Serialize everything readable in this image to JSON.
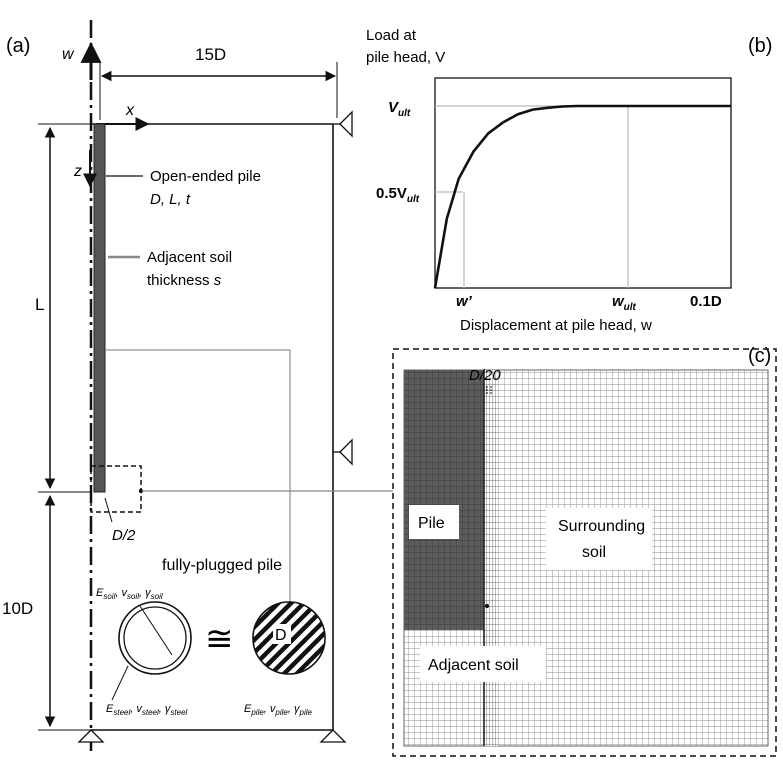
{
  "panel_a": {
    "label": "(a)",
    "axis_w": "w",
    "axis_x": "x",
    "axis_z": "z",
    "dim_15D": "15D",
    "dim_L": "L",
    "dim_10D": "10D",
    "pile_label": "Open-ended pile",
    "pile_params": "D, L, t",
    "adj_soil_line1": "Adjacent soil",
    "adj_soil_line2_prefix": "thickness ",
    "adj_soil_line2_var": "s",
    "d_half": "D/2",
    "fully_plugged": "fully-plugged pile",
    "equiv_symbol": "≅",
    "circle_D": "D",
    "soil_props": "Eₛₒᵢₗ, vₛₒᵢₗ, γₛₒᵢₗ",
    "soil_props_parts": [
      "E",
      "soil",
      ", v",
      "soil",
      ", γ",
      "soil"
    ],
    "steel_props_parts": [
      "E",
      "steel",
      ", v",
      "steel",
      ", γ",
      "steel"
    ],
    "pile_props_parts": [
      "E",
      "pile",
      ", v",
      "pile",
      ", γ",
      "pile"
    ]
  },
  "panel_b": {
    "label": "(b)",
    "ylabel_line1": "Load at",
    "ylabel_line2": "pile head, V",
    "xlabel": "Displacement at pile head, w",
    "ytick_vult_main": "V",
    "ytick_vult_sub": "ult",
    "ytick_half_main": "0.5V",
    "ytick_half_sub": "ult",
    "xtick_wprime": "w’",
    "xtick_wult_main": "w",
    "xtick_wult_sub": "ult",
    "xtick_end": "0.1D"
  },
  "panel_c": {
    "label": "(c)",
    "d20": "D/20",
    "pile": "Pile",
    "surrounding_line1": "Surrounding",
    "surrounding_line2": "soil",
    "adjacent": "Adjacent soil"
  },
  "chart_data": {
    "type": "line",
    "title": "",
    "xlabel": "Displacement at pile head, w",
    "ylabel": "Load at pile head, V",
    "xticks": [
      "w’",
      "w_ult",
      "0.1D"
    ],
    "yticks": [
      "0.5V_ult",
      "V_ult"
    ],
    "series": [
      {
        "x": [
          0.0,
          0.04,
          0.08,
          0.13,
          0.18,
          0.23,
          0.28,
          0.33,
          0.38,
          0.43,
          0.48,
          0.53,
          0.6,
          0.7,
          0.8,
          0.9,
          1.0
        ],
        "y": [
          0.0,
          0.38,
          0.6,
          0.75,
          0.85,
          0.91,
          0.955,
          0.98,
          0.99,
          0.997,
          1.0,
          1.0,
          1.0,
          1.0,
          1.0,
          1.0,
          1.0
        ]
      }
    ],
    "x_unit": "fraction of 0.1D",
    "y_unit": "fraction of V_ult",
    "grid": false
  }
}
